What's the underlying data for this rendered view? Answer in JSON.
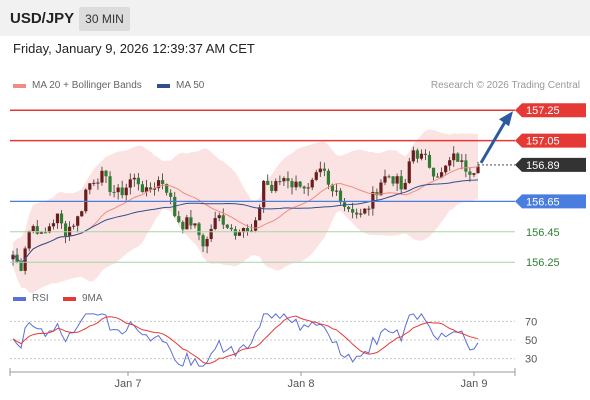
{
  "header": {
    "pair": "USD/JPY",
    "timeframe": "30 MIN"
  },
  "datetime": "Friday, January 9, 2026 12:39:37 AM CET",
  "legend": [
    {
      "label": "MA 20 + Bollinger Bands",
      "color": "#f28b82"
    },
    {
      "label": "MA 50",
      "color": "#2f4f8f"
    }
  ],
  "credit": "Research © 2026 Trading Central",
  "rsi_legend": [
    {
      "label": "RSI",
      "color": "#5b6fd6"
    },
    {
      "label": "9MA",
      "color": "#e53935"
    }
  ],
  "chart_data": {
    "type": "candlestick",
    "x_labels": [
      "Jan 7",
      "Jan 8",
      "Jan 9"
    ],
    "y_range": [
      156.1,
      157.35
    ],
    "levels": [
      {
        "value": 157.25,
        "label": "157.25",
        "kind": "resistance"
      },
      {
        "value": 157.05,
        "label": "157.05",
        "kind": "resistance"
      },
      {
        "value": 156.89,
        "label": "156.89",
        "kind": "current"
      },
      {
        "value": 156.65,
        "label": "156.65",
        "kind": "pivot"
      },
      {
        "value": 156.45,
        "label": "156.45",
        "kind": "support"
      },
      {
        "value": 156.25,
        "label": "156.25",
        "kind": "support"
      }
    ],
    "trend_arrow": {
      "from": 156.89,
      "to": 157.25,
      "direction": "up"
    },
    "price_path": [
      156.3,
      156.2,
      156.45,
      156.5,
      156.4,
      156.5,
      156.55,
      156.45,
      156.5,
      156.55,
      156.75,
      156.8,
      156.82,
      156.75,
      156.7,
      156.72,
      156.8,
      156.78,
      156.7,
      156.75,
      156.8,
      156.72,
      156.55,
      156.5,
      156.52,
      156.45,
      156.35,
      156.5,
      156.55,
      156.5,
      156.45,
      156.5,
      156.42,
      156.5,
      156.8,
      156.72,
      156.78,
      156.82,
      156.75,
      156.78,
      156.72,
      156.8,
      156.85,
      156.7,
      156.72,
      156.62,
      156.6,
      156.55,
      156.6,
      156.7,
      156.8,
      156.82,
      156.78,
      156.7,
      157.0,
      156.95,
      156.92,
      156.85,
      156.82,
      156.9,
      156.95,
      156.88,
      156.86,
      156.88
    ],
    "rsi": {
      "levels": [
        70,
        50,
        30
      ],
      "y_range": [
        20,
        80
      ]
    }
  }
}
